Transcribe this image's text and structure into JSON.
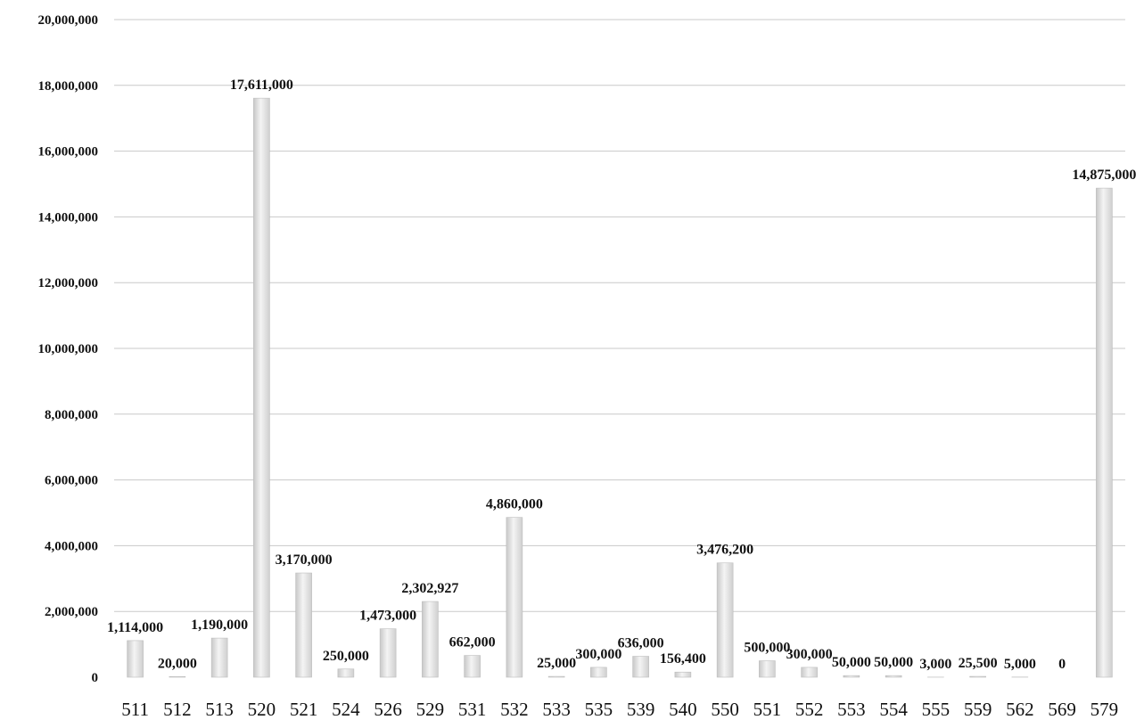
{
  "chart_data": {
    "type": "bar",
    "title": "",
    "xlabel": "",
    "ylabel": "",
    "ylim": [
      0,
      20000000
    ],
    "yticks": [
      {
        "value": 0,
        "label": "0"
      },
      {
        "value": 2000000,
        "label": "2,000,000"
      },
      {
        "value": 4000000,
        "label": "4,000,000"
      },
      {
        "value": 6000000,
        "label": "6,000,000"
      },
      {
        "value": 8000000,
        "label": "8,000,000"
      },
      {
        "value": 10000000,
        "label": "10,000,000"
      },
      {
        "value": 12000000,
        "label": "12,000,000"
      },
      {
        "value": 14000000,
        "label": "14,000,000"
      },
      {
        "value": 16000000,
        "label": "16,000,000"
      },
      {
        "value": 18000000,
        "label": "18,000,000"
      },
      {
        "value": 20000000,
        "label": "20,000,000"
      }
    ],
    "grid": true,
    "legend": "none",
    "bar_color": "#e6e6e6",
    "categories": [
      "511",
      "512",
      "513",
      "520",
      "521",
      "524",
      "526",
      "529",
      "531",
      "532",
      "533",
      "535",
      "539",
      "540",
      "550",
      "551",
      "552",
      "553",
      "554",
      "555",
      "559",
      "562",
      "569",
      "579"
    ],
    "values": [
      1114000,
      20000,
      1190000,
      17611000,
      3170000,
      250000,
      1473000,
      2302927,
      662000,
      4860000,
      25000,
      300000,
      636000,
      156400,
      3476200,
      500000,
      300000,
      50000,
      50000,
      3000,
      25500,
      5000,
      0,
      14875000
    ],
    "data_labels": [
      "1,114,000",
      "20,000",
      "1,190,000",
      "17,611,000",
      "3,170,000",
      "250,000",
      "1,473,000",
      "2,302,927",
      "662,000",
      "4,860,000",
      "25,000",
      "300,000",
      "636,000",
      "156,400",
      "3,476,200",
      "500,000",
      "300,000",
      "50,000",
      "50,000",
      "3,000",
      "25,500",
      "5,000",
      "0",
      "14,875,000"
    ]
  }
}
